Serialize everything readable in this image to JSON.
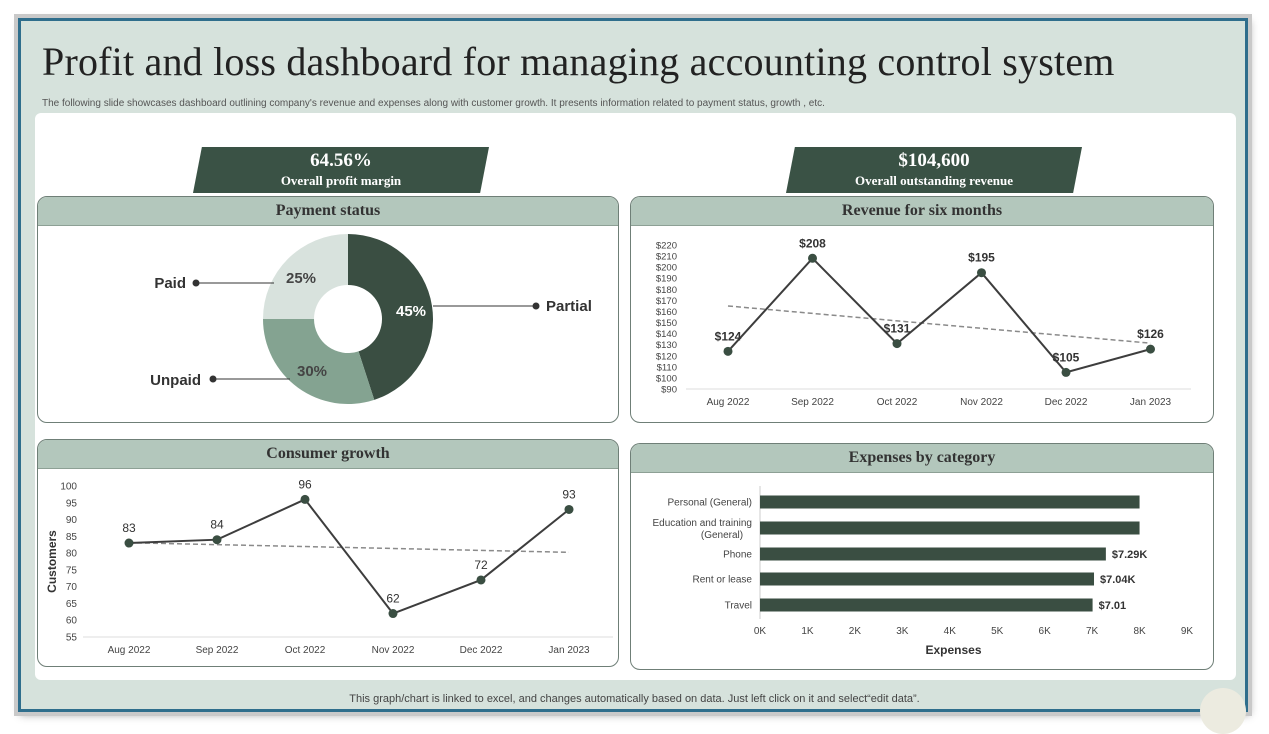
{
  "header": {
    "title": "Profit and loss dashboard for managing accounting control system",
    "subtitle": "The following slide showcases dashboard outlining company's revenue and expenses along with customer growth. It presents information related to payment status, growth , etc."
  },
  "kpis": [
    {
      "value": "64.56%",
      "label": "Overall profit margin"
    },
    {
      "value": "$104,600",
      "label": "Overall outstanding revenue"
    }
  ],
  "panels": {
    "payment": "Payment status",
    "revenue": "Revenue for six months",
    "consumer": "Consumer growth",
    "expenses": "Expenses by category"
  },
  "footer": "This graph/chart is linked to excel,  and changes automatically based on data. Just left click on it and select“edit data”.",
  "colors": {
    "dark": "#3a4e42",
    "mid": "#84a391",
    "light": "#d8e2dd",
    "line": "#3d3d3d",
    "trend": "#8a8a8a"
  },
  "chart_data": [
    {
      "type": "pie",
      "donut": true,
      "slices": [
        {
          "label": "Partial",
          "value": 45,
          "text": "45%",
          "color": "#3a4e42"
        },
        {
          "label": "Unpaid",
          "value": 30,
          "text": "30%",
          "color": "#84a391"
        },
        {
          "label": "Paid",
          "value": 25,
          "text": "25%",
          "color": "#d8e2dd"
        }
      ]
    },
    {
      "type": "line",
      "categories": [
        "Aug 2022",
        "Sep 2022",
        "Oct 2022",
        "Nov 2022",
        "Dec 2022",
        "Jan 2023"
      ],
      "values": [
        124,
        208,
        131,
        195,
        105,
        126
      ],
      "data_labels": [
        "$124",
        "$208",
        "$131",
        "$195",
        "$105",
        "$126"
      ],
      "yticks": [
        "$90",
        "$100",
        "$110",
        "$120",
        "$130",
        "$140",
        "$150",
        "$160",
        "$170",
        "$180",
        "$190",
        "$200",
        "$210",
        "$220"
      ],
      "ylim": [
        90,
        220
      ],
      "trendline": "linear"
    },
    {
      "type": "line",
      "categories": [
        "Aug 2022",
        "Sep 2022",
        "Oct 2022",
        "Nov 2022",
        "Dec 2022",
        "Jan 2023"
      ],
      "values": [
        83,
        84,
        96,
        62,
        72,
        93
      ],
      "data_labels": [
        "83",
        "84",
        "96",
        "62",
        "72",
        "93"
      ],
      "yticks": [
        "55",
        "60",
        "65",
        "70",
        "75",
        "80",
        "85",
        "90",
        "95",
        "100"
      ],
      "ylim": [
        55,
        100
      ],
      "ylabel": "Customers",
      "trendline": "linear"
    },
    {
      "type": "bar",
      "orientation": "horizontal",
      "categories": [
        "Personal (General)",
        "Education and training (General)",
        "Phone",
        "Rent or lease",
        "Travel"
      ],
      "values": [
        8.0,
        8.0,
        7.29,
        7.04,
        7.01
      ],
      "data_labels": [
        "",
        "",
        "$7.29K",
        "$7.04K",
        "$7.01"
      ],
      "xticks": [
        "0K",
        "1K",
        "2K",
        "3K",
        "4K",
        "5K",
        "6K",
        "7K",
        "8K",
        "9K"
      ],
      "xlim": [
        0,
        9
      ],
      "xlabel": "Expenses"
    }
  ]
}
